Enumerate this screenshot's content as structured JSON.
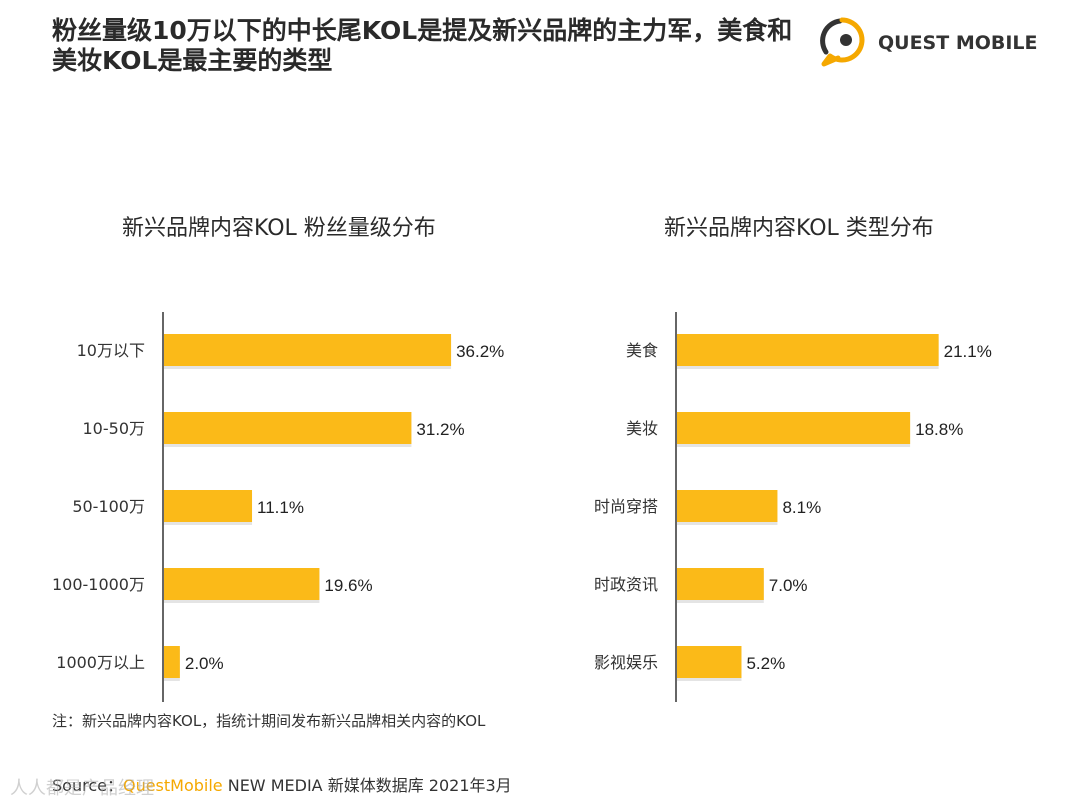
{
  "title": "粉丝量级10万以下的中长尾KOL是提及新兴品牌的主力军，美食和美妆KOL是最主要的类型",
  "logo": {
    "text": "QUEST MOBILE"
  },
  "colors": {
    "bar": "#FBBA18",
    "accent": "#F5A800",
    "axis": "#333333"
  },
  "chart_data": [
    {
      "type": "bar",
      "orientation": "horizontal",
      "title": "新兴品牌内容KOL 粉丝量级分布",
      "categories": [
        "10万以下",
        "10-50万",
        "50-100万",
        "100-1000万",
        "1000万以上"
      ],
      "values": [
        36.2,
        31.2,
        11.1,
        19.6,
        2.0
      ],
      "value_labels": [
        "36.2%",
        "31.2%",
        "11.1%",
        "19.6%",
        "2.0%"
      ],
      "unit": "%",
      "grid": false
    },
    {
      "type": "bar",
      "orientation": "horizontal",
      "title": "新兴品牌内容KOL 类型分布",
      "categories": [
        "美食",
        "美妆",
        "时尚穿搭",
        "时政资讯",
        "影视娱乐"
      ],
      "values": [
        21.1,
        18.8,
        8.1,
        7.0,
        5.2
      ],
      "value_labels": [
        "21.1%",
        "18.8%",
        "8.1%",
        "7.0%",
        "5.2%"
      ],
      "unit": "%",
      "grid": false
    }
  ],
  "footnote": "注：新兴品牌内容KOL，指统计期间发布新兴品牌相关内容的KOL",
  "source": {
    "label": "Source：",
    "brand": "QuestMobile",
    "rest": " NEW MEDIA 新媒体数据库 2021年3月"
  },
  "watermark": "人人都是产品经理"
}
